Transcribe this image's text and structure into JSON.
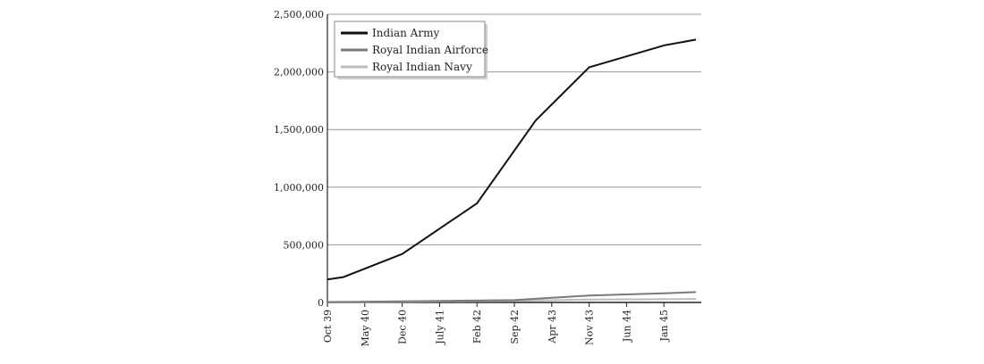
{
  "chart_data": {
    "type": "line",
    "x": [
      "Oct 39",
      "May 40",
      "Dec 40",
      "July 41",
      "Feb 42",
      "Sep 42",
      "Apr 43",
      "Nov 43",
      "Jun 44",
      "Jan 45"
    ],
    "ytick_labels": [
      "0",
      "500,000",
      "1,000,000",
      "1,500,000",
      "2,000,000",
      "2,500,000"
    ],
    "ylim": [
      0,
      2500000
    ],
    "grid": true,
    "legend_position": "top-left",
    "series": [
      {
        "name": "Indian Army",
        "color": "#111111",
        "points": [
          [
            "Oct 39",
            200000
          ],
          [
            "Jan 40",
            220000
          ],
          [
            "Dec 40",
            420000
          ],
          [
            "Feb 42",
            860000
          ],
          [
            "Jan 43",
            1580000
          ],
          [
            "Nov 43",
            2040000
          ],
          [
            "Jan 45",
            2230000
          ],
          [
            "Jul 45",
            2280000
          ]
        ]
      },
      {
        "name": "Royal Indian Airforce",
        "color": "#7a7a7a",
        "points": [
          [
            "Oct 39",
            3000
          ],
          [
            "Dec 40",
            10000
          ],
          [
            "Sep 42",
            20000
          ],
          [
            "Apr 43",
            40000
          ],
          [
            "Nov 43",
            60000
          ],
          [
            "Jan 45",
            80000
          ],
          [
            "Jul 45",
            90000
          ]
        ]
      },
      {
        "name": "Royal Indian Navy",
        "color": "#bbbbbb",
        "points": [
          [
            "Oct 39",
            2000
          ],
          [
            "Dec 40",
            6000
          ],
          [
            "Sep 42",
            15000
          ],
          [
            "Nov 43",
            25000
          ],
          [
            "Jan 45",
            28000
          ],
          [
            "Jul 45",
            30000
          ]
        ]
      }
    ]
  }
}
